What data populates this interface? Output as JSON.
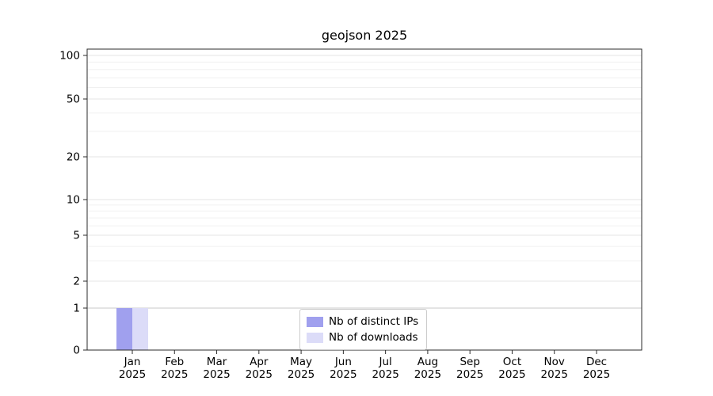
{
  "chart_data": {
    "type": "bar",
    "title": "geojson 2025",
    "categories": [
      "Jan 2025",
      "Feb 2025",
      "Mar 2025",
      "Apr 2025",
      "May 2025",
      "Jun 2025",
      "Jul 2025",
      "Aug 2025",
      "Sep 2025",
      "Oct 2025",
      "Nov 2025",
      "Dec 2025"
    ],
    "series": [
      {
        "name": "Nb of distinct IPs",
        "color": "#a0a0ee",
        "values": [
          1,
          0,
          0,
          0,
          0,
          0,
          0,
          0,
          0,
          0,
          0,
          0
        ]
      },
      {
        "name": "Nb of downloads",
        "color": "#dcdcf8",
        "values": [
          1,
          0,
          0,
          0,
          0,
          0,
          0,
          0,
          0,
          0,
          0,
          0
        ]
      }
    ],
    "yticks": [
      0,
      1,
      2,
      5,
      10,
      20,
      50,
      100
    ],
    "ylim": [
      0,
      110
    ],
    "yscale": "log-like",
    "grid": "horizontal",
    "legend_position": "lower center",
    "xlabel": "",
    "ylabel": ""
  }
}
